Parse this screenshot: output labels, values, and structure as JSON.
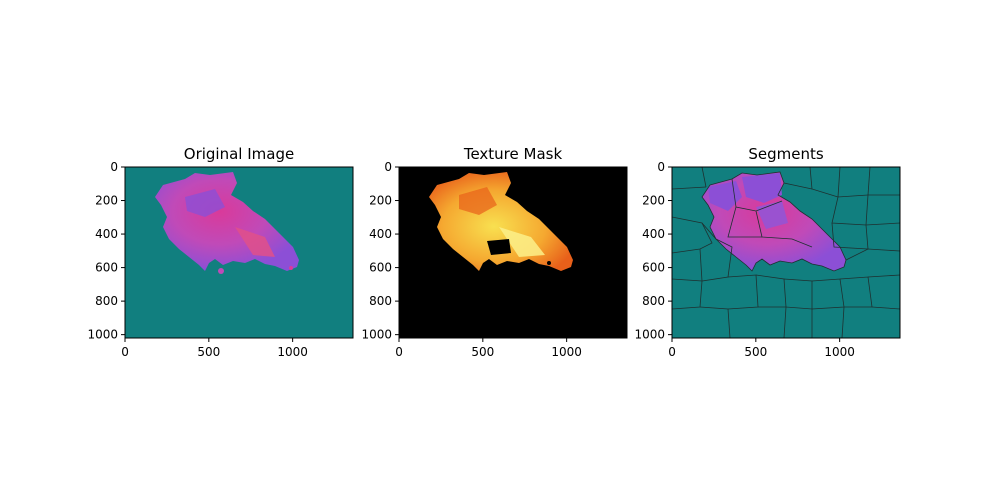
{
  "colors": {
    "background_teal": "#117f7f",
    "mask_black": "#000000",
    "segment_edge": "#1e3030",
    "blob_purple": "#8c4fd6",
    "blob_magenta": "#d93a9a",
    "blob_pink": "#e0508a",
    "mask_orange": "#f08a20",
    "mask_yellow": "#f8e050"
  },
  "chart_data": [
    {
      "type": "image",
      "title": "Original Image",
      "xlim": [
        0,
        1360
      ],
      "ylim": [
        1020,
        0
      ],
      "xticks": [
        0,
        500,
        1000
      ],
      "yticks": [
        0,
        200,
        400,
        600,
        800,
        1000
      ]
    },
    {
      "type": "image",
      "title": "Texture Mask",
      "xlim": [
        0,
        1360
      ],
      "ylim": [
        1020,
        0
      ],
      "xticks": [
        0,
        500,
        1000
      ],
      "yticks": [
        0,
        200,
        400,
        600,
        800,
        1000
      ]
    },
    {
      "type": "image",
      "title": "Segments",
      "xlim": [
        0,
        1360
      ],
      "ylim": [
        1020,
        0
      ],
      "xticks": [
        0,
        500,
        1000
      ],
      "yticks": [
        0,
        200,
        400,
        600,
        800,
        1000
      ]
    }
  ]
}
